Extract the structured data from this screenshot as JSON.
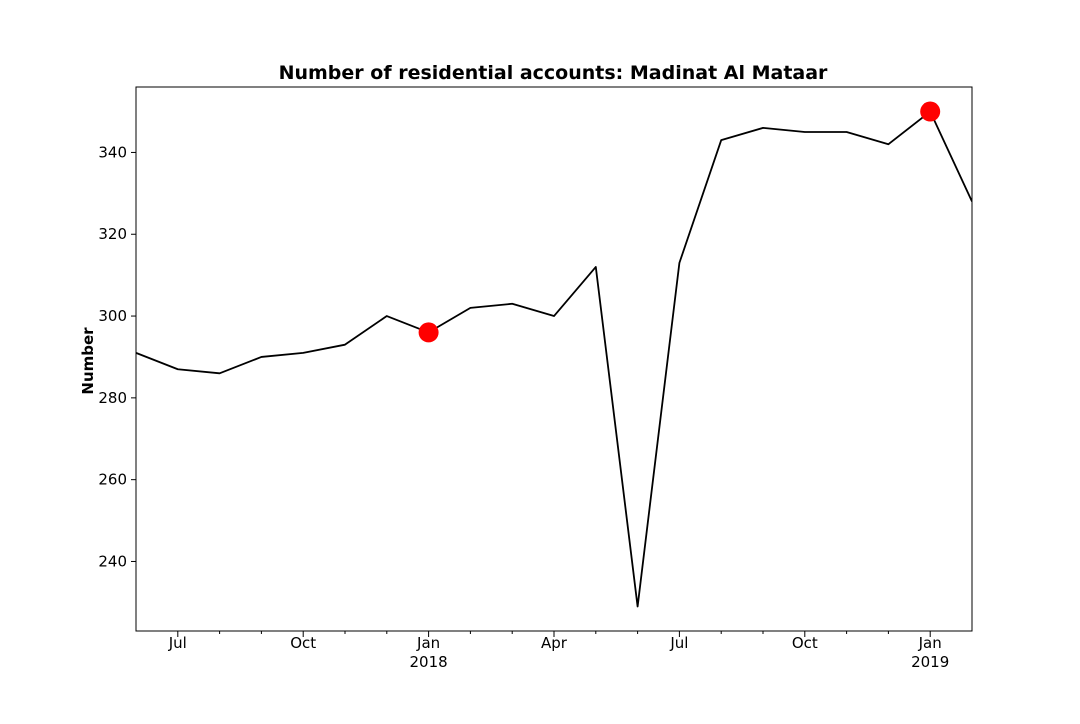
{
  "chart_data": {
    "type": "line",
    "title": "Number of residential accounts: Madinat Al Mataar",
    "xlabel": "",
    "ylabel": "Number",
    "ylim": [
      223,
      356
    ],
    "xlim": [
      "2017-06",
      "2019-02"
    ],
    "grid": false,
    "legend": "none",
    "y_ticks": [
      240,
      260,
      280,
      300,
      320,
      340
    ],
    "x_ticks": [
      {
        "x": "2017-07",
        "label": "Jul",
        "sublabel": ""
      },
      {
        "x": "2017-10",
        "label": "Oct",
        "sublabel": ""
      },
      {
        "x": "2018-01",
        "label": "Jan",
        "sublabel": "2018"
      },
      {
        "x": "2018-04",
        "label": "Apr",
        "sublabel": ""
      },
      {
        "x": "2018-07",
        "label": "Jul",
        "sublabel": ""
      },
      {
        "x": "2018-10",
        "label": "Oct",
        "sublabel": ""
      },
      {
        "x": "2019-01",
        "label": "Jan",
        "sublabel": "2019"
      }
    ],
    "minor_ticks": [
      "2017-08",
      "2017-09",
      "2017-11",
      "2017-12",
      "2018-02",
      "2018-03",
      "2018-05",
      "2018-06",
      "2018-08",
      "2018-09",
      "2018-11",
      "2018-12"
    ],
    "series": [
      {
        "color": "#000000",
        "points": [
          {
            "x": "2017-06",
            "y": 291
          },
          {
            "x": "2017-07",
            "y": 287
          },
          {
            "x": "2017-08",
            "y": 286
          },
          {
            "x": "2017-09",
            "y": 290
          },
          {
            "x": "2017-10",
            "y": 291
          },
          {
            "x": "2017-11",
            "y": 293
          },
          {
            "x": "2017-12",
            "y": 300
          },
          {
            "x": "2018-01",
            "y": 296
          },
          {
            "x": "2018-02",
            "y": 302
          },
          {
            "x": "2018-03",
            "y": 303
          },
          {
            "x": "2018-04",
            "y": 300
          },
          {
            "x": "2018-05",
            "y": 312
          },
          {
            "x": "2018-06",
            "y": 229
          },
          {
            "x": "2018-07",
            "y": 313
          },
          {
            "x": "2018-08",
            "y": 343
          },
          {
            "x": "2018-09",
            "y": 346
          },
          {
            "x": "2018-10",
            "y": 345
          },
          {
            "x": "2018-11",
            "y": 345
          },
          {
            "x": "2018-12",
            "y": 342
          },
          {
            "x": "2019-01",
            "y": 350
          },
          {
            "x": "2019-02",
            "y": 328
          }
        ]
      }
    ],
    "highlights": [
      {
        "x": "2018-01",
        "y": 296,
        "color": "#ff0000"
      },
      {
        "x": "2019-01",
        "y": 350,
        "color": "#ff0000"
      }
    ]
  }
}
